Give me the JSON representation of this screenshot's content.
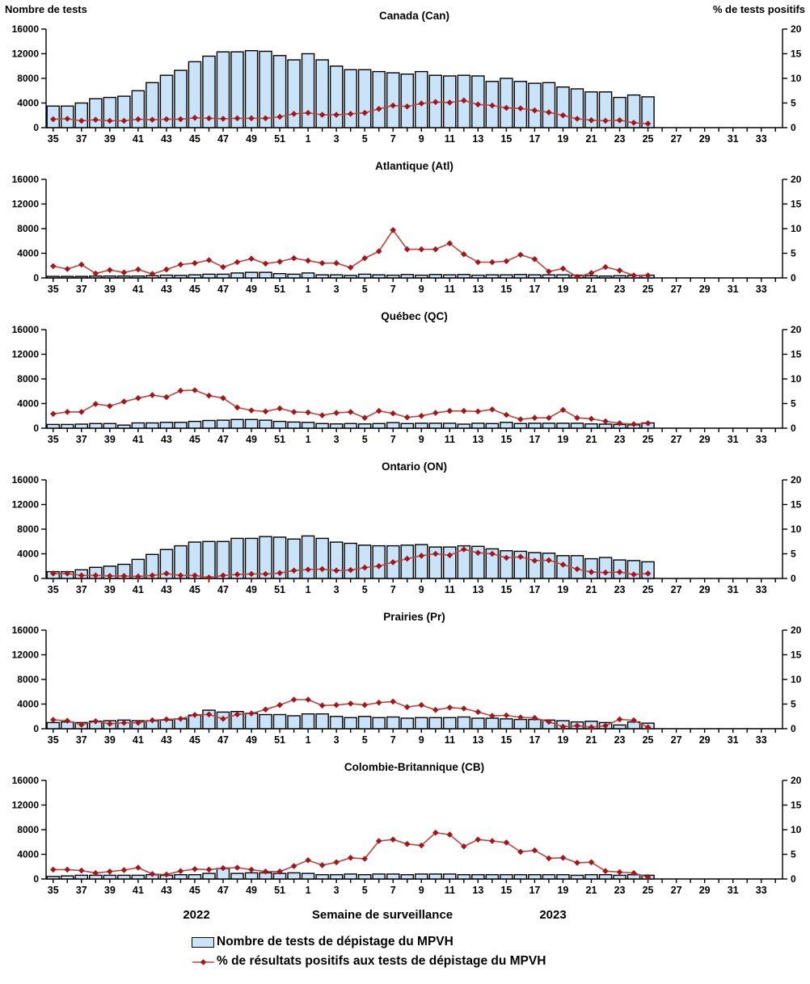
{
  "header": {
    "left_axis_title": "Nombre de tests",
    "right_axis_title": "% de tests positifs"
  },
  "footer": {
    "year_left": "2022",
    "x_axis_title": "Semaine de surveillance",
    "year_right": "2023"
  },
  "legend": {
    "tests_label": "Nombre de tests de dépistage du MPVH",
    "pct_label": "% de résultats positifs aux tests de dépistage du MPVH"
  },
  "colors": {
    "bar_fill": "#C9E3F8",
    "bar_stroke": "#000000",
    "line_color": "#C5423B",
    "marker_color": "#A2161B"
  },
  "axes": {
    "left_max": 16000,
    "right_max": 20,
    "left_ticks": [
      0,
      4000,
      8000,
      12000,
      16000
    ],
    "right_ticks": [
      0,
      5,
      10,
      15,
      20
    ],
    "x_weeks": [
      35,
      36,
      37,
      38,
      39,
      40,
      41,
      42,
      43,
      44,
      45,
      46,
      47,
      48,
      49,
      50,
      51,
      52,
      1,
      2,
      3,
      4,
      5,
      6,
      7,
      8,
      9,
      10,
      11,
      12,
      13,
      14,
      15,
      16,
      17,
      18,
      19,
      20,
      21,
      22,
      23,
      24,
      25,
      26,
      27,
      28,
      29,
      30,
      31,
      32,
      33,
      34
    ]
  },
  "chart_data": [
    {
      "type": "bar+line",
      "title": "Canada (Can)",
      "weeks": [
        35,
        36,
        37,
        38,
        39,
        40,
        41,
        42,
        43,
        44,
        45,
        46,
        47,
        48,
        49,
        50,
        51,
        52,
        1,
        2,
        3,
        4,
        5,
        6,
        7,
        8,
        9,
        10,
        11,
        12,
        13,
        14,
        15,
        16,
        17,
        18,
        19,
        20,
        21,
        22,
        23,
        24,
        25
      ],
      "tests": [
        3500,
        3500,
        4000,
        4700,
        4900,
        5100,
        6000,
        7300,
        8500,
        9300,
        10700,
        11600,
        12300,
        12300,
        12500,
        12400,
        11700,
        11000,
        12000,
        11000,
        10000,
        9400,
        9400,
        9100,
        8900,
        8700,
        9100,
        8500,
        8400,
        8500,
        8400,
        7500,
        8000,
        7500,
        7200,
        7300,
        6600,
        6300,
        5800,
        5800,
        4900,
        5300,
        5000
      ],
      "pct_positive": [
        1.7,
        1.8,
        1.4,
        1.6,
        1.4,
        1.4,
        1.7,
        1.6,
        1.7,
        1.7,
        2.0,
        1.9,
        1.8,
        1.9,
        1.9,
        1.9,
        2.2,
        2.8,
        3.0,
        2.6,
        2.6,
        2.8,
        3.0,
        3.8,
        4.5,
        4.3,
        4.9,
        5.2,
        5.1,
        5.5,
        4.7,
        4.5,
        4.0,
        3.9,
        3.5,
        3.1,
        2.5,
        1.8,
        1.5,
        1.4,
        1.5,
        1.0,
        0.8
      ]
    },
    {
      "type": "bar+line",
      "title": "Atlantique (Atl)",
      "weeks": [
        35,
        36,
        37,
        38,
        39,
        40,
        41,
        42,
        43,
        44,
        45,
        46,
        47,
        48,
        49,
        50,
        51,
        52,
        1,
        2,
        3,
        4,
        5,
        6,
        7,
        8,
        9,
        10,
        11,
        12,
        13,
        14,
        15,
        16,
        17,
        18,
        19,
        20,
        21,
        22,
        23,
        24,
        25
      ],
      "tests": [
        250,
        250,
        250,
        300,
        300,
        300,
        300,
        350,
        450,
        400,
        500,
        600,
        600,
        800,
        900,
        900,
        700,
        600,
        800,
        500,
        500,
        400,
        600,
        500,
        450,
        550,
        450,
        550,
        500,
        550,
        450,
        500,
        500,
        550,
        500,
        500,
        500,
        450,
        350,
        300,
        350,
        400,
        450
      ],
      "pct_positive": [
        2.4,
        1.8,
        2.7,
        0.9,
        1.6,
        1.1,
        1.7,
        0.8,
        1.7,
        2.7,
        3.0,
        3.6,
        2.2,
        3.2,
        3.9,
        2.9,
        3.3,
        4.0,
        3.5,
        3.0,
        3.0,
        2.1,
        4.0,
        5.4,
        9.7,
        5.8,
        5.8,
        5.8,
        7.0,
        4.8,
        3.2,
        3.2,
        3.4,
        4.7,
        3.8,
        1.3,
        1.9,
        0.2,
        1.0,
        2.2,
        1.5,
        0.5,
        0.5
      ]
    },
    {
      "type": "bar+line",
      "title": "Québec (QC)",
      "weeks": [
        35,
        36,
        37,
        38,
        39,
        40,
        41,
        42,
        43,
        44,
        45,
        46,
        47,
        48,
        49,
        50,
        51,
        52,
        1,
        2,
        3,
        4,
        5,
        6,
        7,
        8,
        9,
        10,
        11,
        12,
        13,
        14,
        15,
        16,
        17,
        18,
        19,
        20,
        21,
        22,
        23,
        24,
        25
      ],
      "tests": [
        600,
        600,
        650,
        750,
        750,
        500,
        850,
        850,
        950,
        950,
        1100,
        1250,
        1300,
        1400,
        1400,
        1300,
        1100,
        1000,
        950,
        750,
        700,
        750,
        700,
        750,
        900,
        750,
        800,
        800,
        800,
        650,
        800,
        750,
        950,
        750,
        800,
        800,
        800,
        800,
        700,
        650,
        600,
        550,
        850
      ],
      "pct_positive": [
        2.9,
        3.3,
        3.3,
        4.9,
        4.5,
        5.4,
        6.1,
        6.7,
        6.3,
        7.6,
        7.7,
        6.6,
        6.1,
        4.2,
        3.6,
        3.4,
        4.0,
        3.3,
        3.2,
        2.6,
        3.1,
        3.3,
        2.1,
        3.5,
        3.0,
        2.2,
        2.5,
        3.1,
        3.5,
        3.5,
        3.4,
        3.8,
        2.7,
        1.8,
        2.1,
        2.1,
        3.7,
        2.1,
        1.9,
        1.4,
        1.0,
        0.8,
        1.0
      ]
    },
    {
      "type": "bar+line",
      "title": "Ontario (ON)",
      "weeks": [
        35,
        36,
        37,
        38,
        39,
        40,
        41,
        42,
        43,
        44,
        45,
        46,
        47,
        48,
        49,
        50,
        51,
        52,
        1,
        2,
        3,
        4,
        5,
        6,
        7,
        8,
        9,
        10,
        11,
        12,
        13,
        14,
        15,
        16,
        17,
        18,
        19,
        20,
        21,
        22,
        23,
        24,
        25
      ],
      "tests": [
        1100,
        1100,
        1400,
        1800,
        2000,
        2300,
        3100,
        3900,
        4700,
        5300,
        5900,
        6000,
        6000,
        6500,
        6500,
        6800,
        6700,
        6400,
        6900,
        6500,
        5900,
        5700,
        5400,
        5300,
        5300,
        5400,
        5500,
        5100,
        5100,
        5300,
        5200,
        4800,
        4500,
        4400,
        4200,
        4100,
        3700,
        3700,
        3200,
        3400,
        3000,
        2900,
        2700
      ],
      "pct_positive": [
        1.0,
        1.0,
        0.6,
        0.6,
        0.5,
        0.5,
        0.4,
        0.6,
        1.0,
        0.6,
        0.6,
        0.2,
        0.6,
        0.8,
        0.9,
        0.9,
        1.1,
        1.6,
        1.8,
        1.9,
        1.6,
        1.7,
        2.2,
        2.5,
        3.3,
        4.0,
        4.6,
        5.0,
        4.7,
        5.9,
        5.2,
        5.0,
        4.2,
        4.4,
        3.6,
        3.7,
        2.8,
        1.9,
        1.3,
        1.2,
        1.3,
        0.8,
        1.0
      ]
    },
    {
      "type": "bar+line",
      "title": "Prairies (Pr)",
      "weeks": [
        35,
        36,
        37,
        38,
        39,
        40,
        41,
        42,
        43,
        44,
        45,
        46,
        47,
        48,
        49,
        50,
        51,
        52,
        1,
        2,
        3,
        4,
        5,
        6,
        7,
        8,
        9,
        10,
        11,
        12,
        13,
        14,
        15,
        16,
        17,
        18,
        19,
        20,
        21,
        22,
        23,
        24,
        25
      ],
      "tests": [
        1000,
        1100,
        1000,
        1200,
        1300,
        1400,
        1300,
        1300,
        1400,
        1600,
        2200,
        3000,
        2700,
        2800,
        2500,
        2300,
        2300,
        2100,
        2400,
        2400,
        2000,
        1800,
        2000,
        1800,
        1900,
        1700,
        1800,
        1800,
        1800,
        1900,
        1700,
        1700,
        1600,
        1500,
        1500,
        1400,
        1300,
        1100,
        1200,
        1000,
        600,
        1100,
        900
      ],
      "pct_positive": [
        1.8,
        1.6,
        0.8,
        1.5,
        1.0,
        1.2,
        1.2,
        1.7,
        1.9,
        2.0,
        2.8,
        2.9,
        2.0,
        2.9,
        3.1,
        3.9,
        4.8,
        5.9,
        5.9,
        4.7,
        4.8,
        5.1,
        4.8,
        5.3,
        5.5,
        4.4,
        4.8,
        3.8,
        4.3,
        4.1,
        3.4,
        2.6,
        2.7,
        2.3,
        2.2,
        1.4,
        0.4,
        0.6,
        0.3,
        0.6,
        1.9,
        1.7,
        0.3
      ]
    },
    {
      "type": "bar+line",
      "title": "Colombie-Britannique (CB)",
      "weeks": [
        35,
        36,
        37,
        38,
        39,
        40,
        41,
        42,
        43,
        44,
        45,
        46,
        47,
        48,
        49,
        50,
        51,
        52,
        1,
        2,
        3,
        4,
        5,
        6,
        7,
        8,
        9,
        10,
        11,
        12,
        13,
        14,
        15,
        16,
        17,
        18,
        19,
        20,
        21,
        22,
        23,
        24,
        25
      ],
      "tests": [
        400,
        500,
        600,
        600,
        600,
        600,
        600,
        700,
        600,
        700,
        700,
        900,
        1700,
        900,
        1000,
        1000,
        900,
        1000,
        900,
        700,
        700,
        800,
        700,
        800,
        800,
        700,
        800,
        800,
        800,
        700,
        700,
        700,
        700,
        700,
        700,
        700,
        700,
        600,
        700,
        700,
        600,
        700,
        600
      ],
      "pct_positive": [
        1.9,
        1.9,
        1.7,
        1.2,
        1.5,
        1.8,
        2.3,
        1.0,
        0.9,
        1.6,
        2.0,
        1.9,
        2.2,
        2.3,
        1.9,
        1.5,
        1.5,
        2.6,
        3.8,
        2.8,
        3.4,
        4.3,
        4.1,
        7.7,
        8.0,
        7.1,
        6.8,
        9.4,
        9.0,
        6.6,
        8.0,
        7.7,
        7.4,
        5.5,
        5.8,
        4.2,
        4.3,
        3.3,
        3.4,
        1.6,
        1.4,
        1.2,
        0.4
      ]
    }
  ]
}
